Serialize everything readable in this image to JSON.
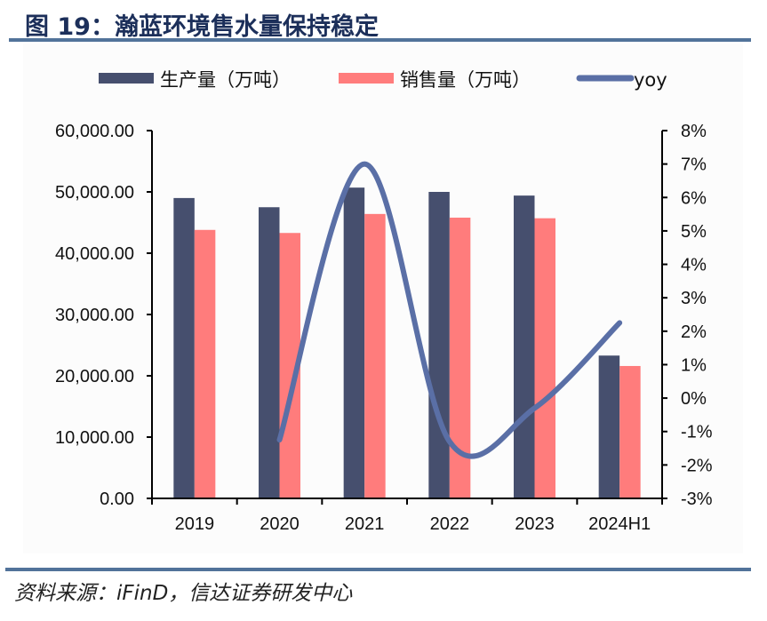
{
  "header": {
    "title": "图 19：瀚蓝环境售水量保持稳定"
  },
  "footer": {
    "source": "资料来源：iFinD，信达证券研发中心"
  },
  "colors": {
    "production": "#464f6e",
    "sales": "#ff7c7c",
    "yoy": "#5a6fa6",
    "rule": "#52739a",
    "title": "#1c2f5a"
  },
  "chart_data": {
    "type": "bar",
    "title": "瀚蓝环境售水量保持稳定",
    "categories": [
      "2019",
      "2020",
      "2021",
      "2022",
      "2023",
      "2024H1"
    ],
    "series": [
      {
        "name": "生产量（万吨）",
        "type": "bar",
        "axis": "left",
        "values": [
          49000,
          47500,
          50700,
          50000,
          49400,
          23300
        ]
      },
      {
        "name": "销售量（万吨）",
        "type": "bar",
        "axis": "left",
        "values": [
          43800,
          43300,
          46400,
          45800,
          45700,
          21600
        ]
      },
      {
        "name": "yoy",
        "type": "line",
        "axis": "right",
        "smooth": true,
        "values": [
          null,
          -1.25,
          7.0,
          -1.3,
          -0.3,
          2.25
        ]
      }
    ],
    "left_axis": {
      "ylim": [
        0,
        60000
      ],
      "ticks": [
        "0.00",
        "10,000.00",
        "20,000.00",
        "30,000.00",
        "40,000.00",
        "50,000.00",
        "60,000.00"
      ]
    },
    "right_axis": {
      "ylim": [
        -3,
        8
      ],
      "ticks": [
        "-3%",
        "-2%",
        "-1%",
        "0%",
        "1%",
        "2%",
        "3%",
        "4%",
        "5%",
        "6%",
        "7%",
        "8%"
      ]
    },
    "xlabel": "",
    "ylabel": "",
    "legend": {
      "placement": "top",
      "items": [
        "生产量（万吨）",
        "销售量（万吨）",
        "yoy"
      ]
    },
    "grid": false
  }
}
